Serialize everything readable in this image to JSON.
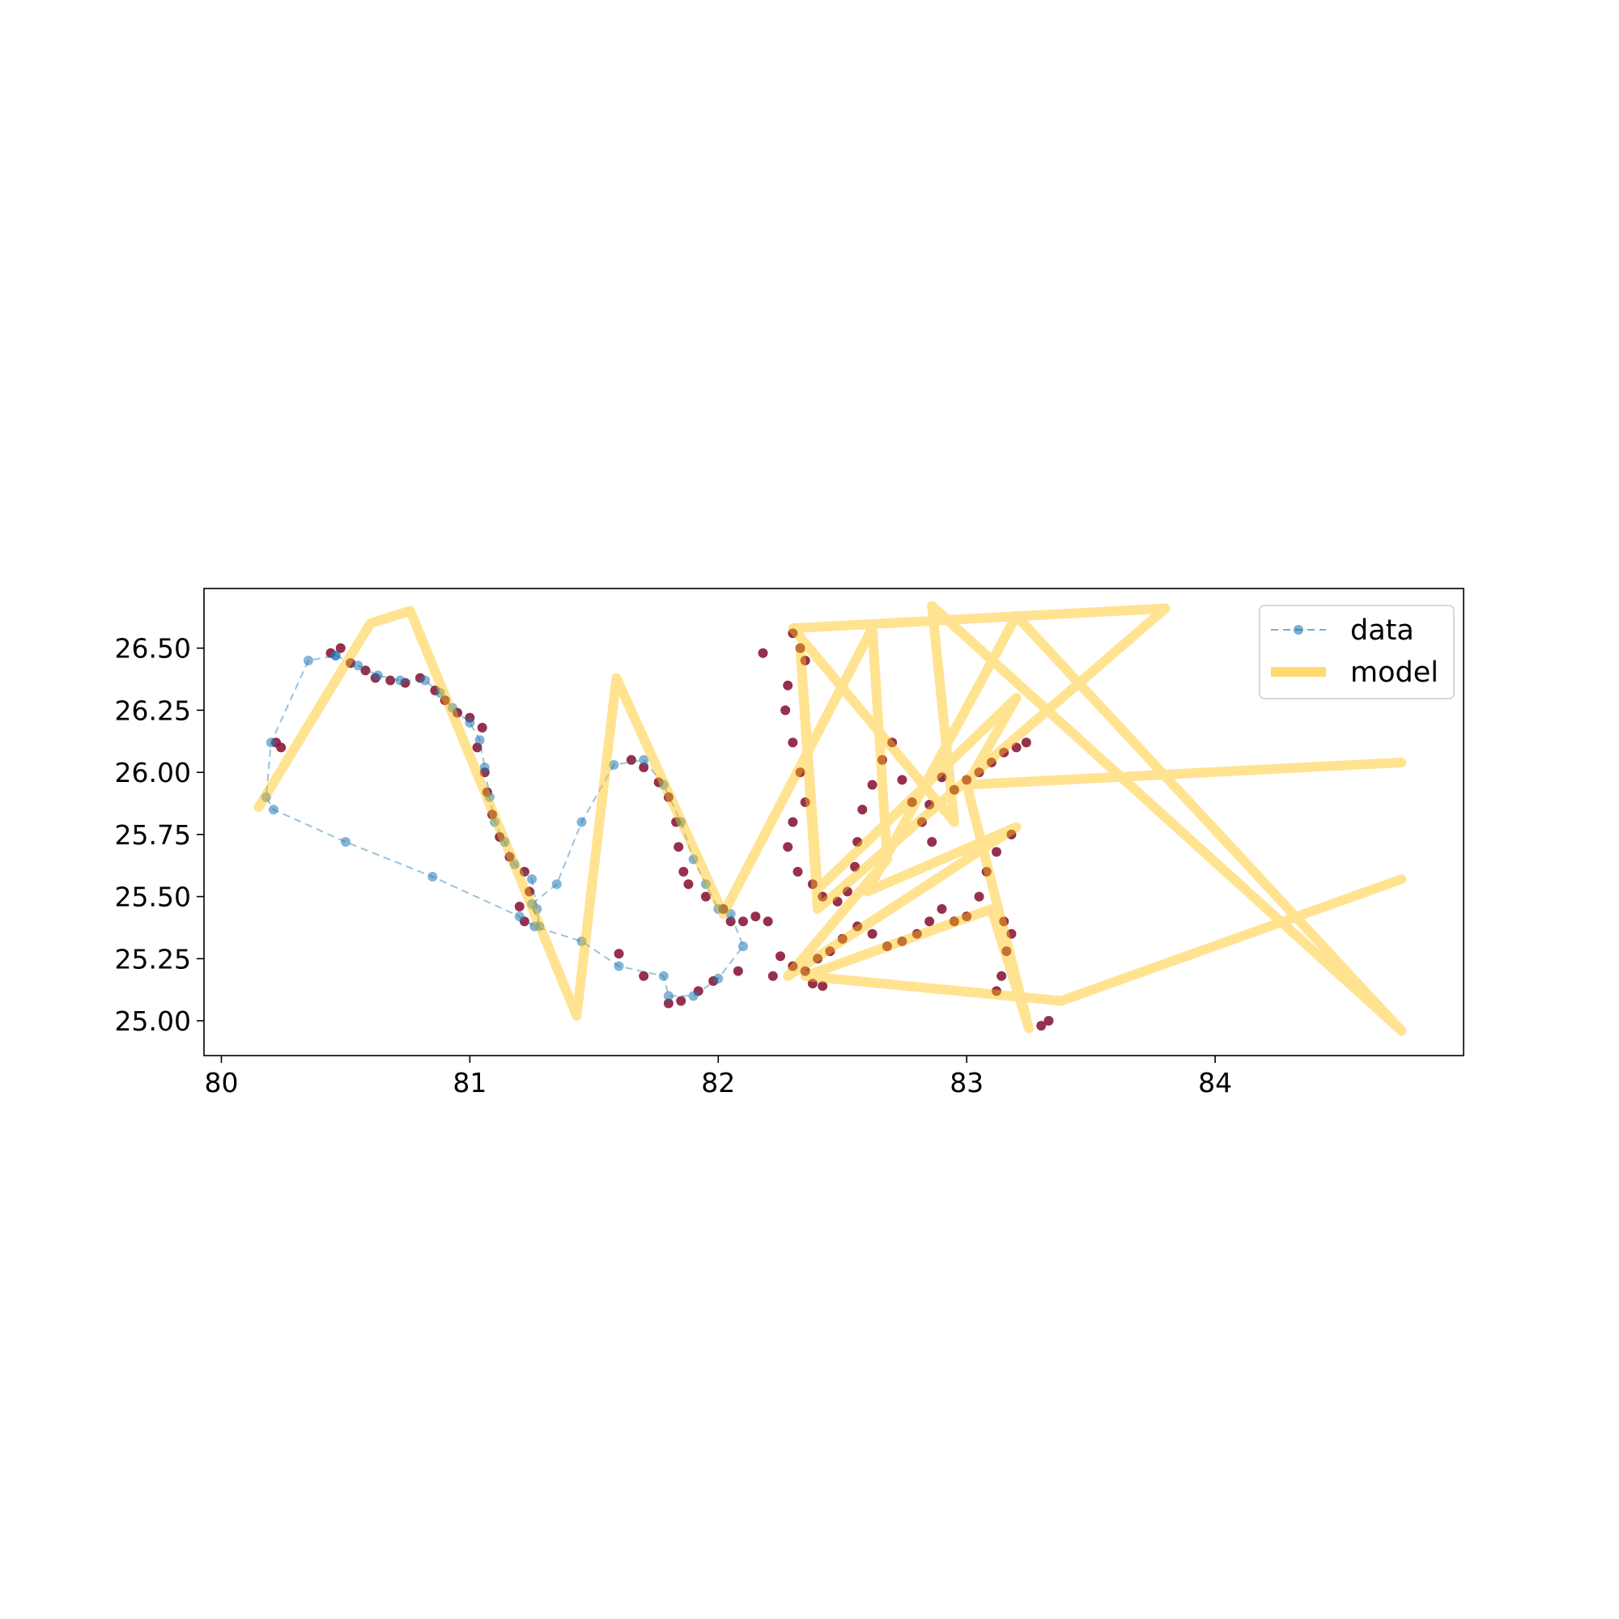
{
  "chart_data": {
    "type": "line",
    "title": "",
    "xlabel": "",
    "ylabel": "",
    "xlim": [
      79.93,
      85.0
    ],
    "ylim": [
      24.86,
      26.74
    ],
    "xticks": [
      80,
      81,
      82,
      83,
      84
    ],
    "yticks": [
      25.0,
      25.25,
      25.5,
      25.75,
      26.0,
      26.25,
      26.5
    ],
    "ytick_labels": [
      "25.00",
      "25.25",
      "25.50",
      "25.75",
      "26.00",
      "26.25",
      "26.50"
    ],
    "xtick_labels": [
      "80",
      "81",
      "82",
      "83",
      "84"
    ],
    "grid": false,
    "legend_position": "top-right",
    "colors": {
      "data": "#1f77b4",
      "model": "#ffc20a",
      "scatter": "#8b1a3a",
      "axes": "#000000"
    },
    "series": [
      {
        "name": "data",
        "style": "dashed line with circle markers",
        "points": [
          [
            80.46,
            26.47
          ],
          [
            80.55,
            26.43
          ],
          [
            80.63,
            26.39
          ],
          [
            80.72,
            26.37
          ],
          [
            80.82,
            26.37
          ],
          [
            80.88,
            26.32
          ],
          [
            80.93,
            26.26
          ],
          [
            81.0,
            26.2
          ],
          [
            81.04,
            26.13
          ],
          [
            81.06,
            26.02
          ],
          [
            81.08,
            25.9
          ],
          [
            81.1,
            25.8
          ],
          [
            81.14,
            25.72
          ],
          [
            81.18,
            25.63
          ],
          [
            81.25,
            25.57
          ],
          [
            81.27,
            25.45
          ],
          [
            81.28,
            25.38
          ],
          [
            81.25,
            25.47
          ],
          [
            81.35,
            25.55
          ],
          [
            81.45,
            25.8
          ],
          [
            81.58,
            26.03
          ],
          [
            81.7,
            26.05
          ],
          [
            81.78,
            25.95
          ],
          [
            81.85,
            25.8
          ],
          [
            81.9,
            25.65
          ],
          [
            81.95,
            25.55
          ],
          [
            82.0,
            25.45
          ],
          [
            82.05,
            25.43
          ],
          [
            82.1,
            25.3
          ],
          [
            82.0,
            25.17
          ],
          [
            81.9,
            25.1
          ],
          [
            81.8,
            25.1
          ],
          [
            81.78,
            25.18
          ],
          [
            81.6,
            25.22
          ],
          [
            81.45,
            25.32
          ],
          [
            81.26,
            25.38
          ],
          [
            81.2,
            25.42
          ],
          [
            80.85,
            25.58
          ],
          [
            80.5,
            25.72
          ],
          [
            80.21,
            25.85
          ],
          [
            80.18,
            25.9
          ],
          [
            80.2,
            26.12
          ],
          [
            80.35,
            26.45
          ],
          [
            80.46,
            26.47
          ]
        ]
      },
      {
        "name": "model",
        "style": "thick translucent line",
        "points": [
          [
            80.15,
            25.86
          ],
          [
            80.6,
            26.6
          ],
          [
            80.76,
            26.65
          ],
          [
            81.43,
            25.02
          ],
          [
            81.59,
            26.38
          ],
          [
            82.02,
            25.43
          ],
          [
            82.62,
            26.58
          ],
          [
            82.68,
            25.65
          ],
          [
            82.28,
            25.18
          ],
          [
            83.2,
            25.78
          ],
          [
            82.6,
            25.52
          ],
          [
            83.2,
            26.63
          ],
          [
            84.75,
            24.96
          ],
          [
            82.86,
            26.67
          ],
          [
            82.95,
            25.8
          ],
          [
            82.3,
            26.58
          ],
          [
            83.8,
            26.66
          ],
          [
            82.4,
            25.45
          ],
          [
            82.33,
            26.5
          ],
          [
            82.4,
            25.53
          ],
          [
            83.2,
            26.3
          ],
          [
            83.0,
            25.95
          ],
          [
            84.75,
            26.04
          ],
          [
            83.0,
            25.95
          ],
          [
            83.25,
            24.97
          ],
          [
            83.1,
            25.45
          ],
          [
            82.35,
            25.18
          ],
          [
            83.38,
            25.08
          ],
          [
            84.75,
            25.57
          ]
        ]
      }
    ],
    "scatter": {
      "name": "",
      "description": "dense dark red points along track",
      "points": [
        [
          80.44,
          26.48
        ],
        [
          80.48,
          26.5
        ],
        [
          80.52,
          26.44
        ],
        [
          80.58,
          26.41
        ],
        [
          80.62,
          26.38
        ],
        [
          80.68,
          26.37
        ],
        [
          80.74,
          26.36
        ],
        [
          80.8,
          26.38
        ],
        [
          80.86,
          26.33
        ],
        [
          80.9,
          26.29
        ],
        [
          80.95,
          26.24
        ],
        [
          81.0,
          26.22
        ],
        [
          81.05,
          26.18
        ],
        [
          81.03,
          26.1
        ],
        [
          81.06,
          26.0
        ],
        [
          81.07,
          25.92
        ],
        [
          81.09,
          25.83
        ],
        [
          81.12,
          25.74
        ],
        [
          81.16,
          25.66
        ],
        [
          81.22,
          25.6
        ],
        [
          81.24,
          25.52
        ],
        [
          81.2,
          25.46
        ],
        [
          81.22,
          25.4
        ],
        [
          80.22,
          26.12
        ],
        [
          80.24,
          26.1
        ],
        [
          81.65,
          26.05
        ],
        [
          81.7,
          26.02
        ],
        [
          81.76,
          25.96
        ],
        [
          81.8,
          25.9
        ],
        [
          81.83,
          25.8
        ],
        [
          81.84,
          25.7
        ],
        [
          81.86,
          25.6
        ],
        [
          81.88,
          25.55
        ],
        [
          81.95,
          25.5
        ],
        [
          82.02,
          25.45
        ],
        [
          82.05,
          25.4
        ],
        [
          82.1,
          25.4
        ],
        [
          82.15,
          25.42
        ],
        [
          82.2,
          25.4
        ],
        [
          82.08,
          25.2
        ],
        [
          81.98,
          25.16
        ],
        [
          81.92,
          25.12
        ],
        [
          81.85,
          25.08
        ],
        [
          81.8,
          25.07
        ],
        [
          81.7,
          25.18
        ],
        [
          81.6,
          25.27
        ],
        [
          82.18,
          26.48
        ],
        [
          82.3,
          26.56
        ],
        [
          82.33,
          26.5
        ],
        [
          82.35,
          26.45
        ],
        [
          82.28,
          26.35
        ],
        [
          82.27,
          26.25
        ],
        [
          82.3,
          26.12
        ],
        [
          82.33,
          26.0
        ],
        [
          82.35,
          25.88
        ],
        [
          82.3,
          25.8
        ],
        [
          82.28,
          25.7
        ],
        [
          82.32,
          25.6
        ],
        [
          82.38,
          25.55
        ],
        [
          82.42,
          25.5
        ],
        [
          82.48,
          25.48
        ],
        [
          82.52,
          25.52
        ],
        [
          82.55,
          25.62
        ],
        [
          82.56,
          25.72
        ],
        [
          82.58,
          25.85
        ],
        [
          82.62,
          25.95
        ],
        [
          82.66,
          26.05
        ],
        [
          82.7,
          26.12
        ],
        [
          82.74,
          25.97
        ],
        [
          82.78,
          25.88
        ],
        [
          82.82,
          25.8
        ],
        [
          82.86,
          25.72
        ],
        [
          82.85,
          25.87
        ],
        [
          82.9,
          25.98
        ],
        [
          82.95,
          25.93
        ],
        [
          83.0,
          25.97
        ],
        [
          83.05,
          26.0
        ],
        [
          83.1,
          26.04
        ],
        [
          83.15,
          26.08
        ],
        [
          83.2,
          26.1
        ],
        [
          83.24,
          26.12
        ],
        [
          83.18,
          25.75
        ],
        [
          83.12,
          25.68
        ],
        [
          83.08,
          25.6
        ],
        [
          83.05,
          25.5
        ],
        [
          83.0,
          25.42
        ],
        [
          82.95,
          25.4
        ],
        [
          82.9,
          25.45
        ],
        [
          82.85,
          25.4
        ],
        [
          82.8,
          25.35
        ],
        [
          82.74,
          25.32
        ],
        [
          82.68,
          25.3
        ],
        [
          82.62,
          25.35
        ],
        [
          82.56,
          25.38
        ],
        [
          82.5,
          25.33
        ],
        [
          82.45,
          25.28
        ],
        [
          82.4,
          25.25
        ],
        [
          82.35,
          25.2
        ],
        [
          82.3,
          25.22
        ],
        [
          82.25,
          25.26
        ],
        [
          82.22,
          25.18
        ],
        [
          82.38,
          25.15
        ],
        [
          82.42,
          25.14
        ],
        [
          83.15,
          25.4
        ],
        [
          83.18,
          25.35
        ],
        [
          83.16,
          25.28
        ],
        [
          83.14,
          25.18
        ],
        [
          83.12,
          25.12
        ],
        [
          83.3,
          24.98
        ],
        [
          83.33,
          25.0
        ]
      ]
    }
  }
}
